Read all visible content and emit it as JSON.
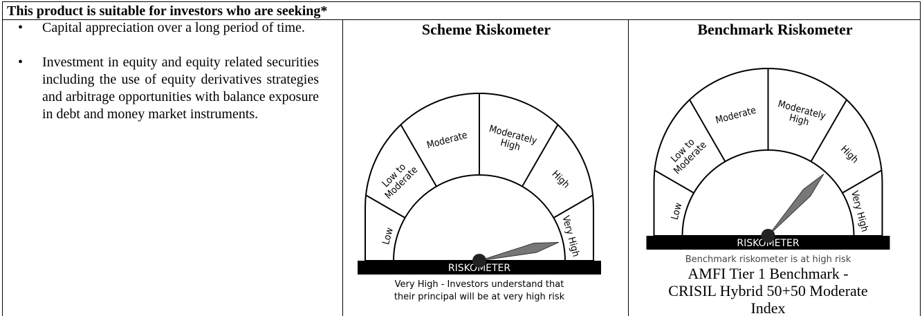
{
  "header": {
    "title": "This product is suitable for investors who are seeking*"
  },
  "suitability": {
    "items": [
      "Capital appreciation over a long period of time.",
      "Investment in equity and equity related securities including the use of equity derivatives strategies and arbitrage opportunities with balance exposure in debt and money market instruments."
    ]
  },
  "riskometers": [
    {
      "title": "Scheme Riskometer",
      "levels": [
        [
          "Low"
        ],
        [
          "Low to",
          "Moderate"
        ],
        [
          "Moderate"
        ],
        [
          "Moderately",
          "High"
        ],
        [
          "High"
        ],
        [
          "Very High"
        ]
      ],
      "label": "RISKOMETER",
      "note": [
        "Very High - Investors understand that",
        "their principal will be at very high risk"
      ]
    },
    {
      "title": "Benchmark Riskometer",
      "levels": [
        [
          "Low"
        ],
        [
          "Low to",
          "Moderate"
        ],
        [
          "Moderate"
        ],
        [
          "Moderately",
          "High"
        ],
        [
          "High"
        ],
        [
          "Very High"
        ]
      ],
      "label": "RISKOMETER",
      "note": [
        "Benchmark riskometer is at high risk"
      ],
      "benchmark": "AMFI Tier 1 Benchmark - CRISIL Hybrid 50+50 Moderate Index"
    }
  ]
}
